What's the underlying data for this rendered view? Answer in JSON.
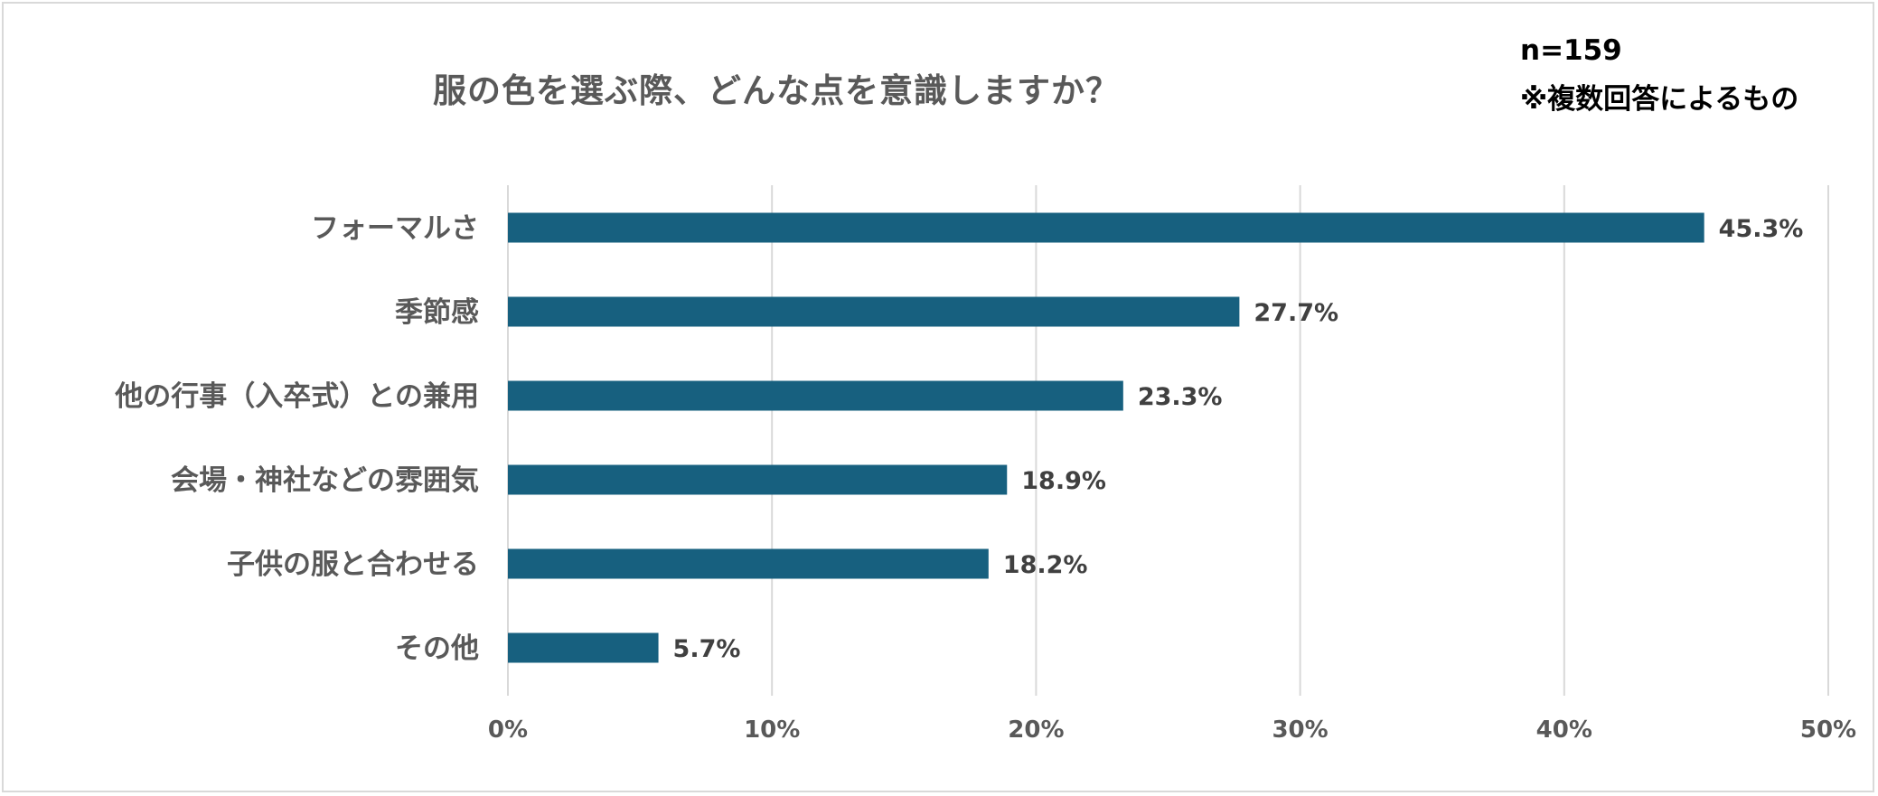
{
  "chart_data": {
    "type": "bar",
    "orientation": "horizontal",
    "title": "服の色を選ぶ際、どんな点を意識しますか？",
    "notes": [
      "n=159",
      "※複数回答によるもの"
    ],
    "categories": [
      "フォーマルさ",
      "季節感",
      "他の行事（入卒式）との兼用",
      "会場・神社などの雰囲気",
      "子供の服と合わせる",
      "その他"
    ],
    "values": [
      45.3,
      27.7,
      23.3,
      18.9,
      18.2,
      5.7
    ],
    "value_labels": [
      "45.3%",
      "27.7%",
      "23.3%",
      "18.9%",
      "18.2%",
      "5.7%"
    ],
    "xlim": [
      0,
      50
    ],
    "xticks": [
      0,
      10,
      20,
      30,
      40,
      50
    ],
    "xtick_labels": [
      "0%",
      "10%",
      "20%",
      "30%",
      "40%",
      "50%"
    ],
    "grid": "vertical",
    "bar_color": "#17607f",
    "legend": "none"
  }
}
